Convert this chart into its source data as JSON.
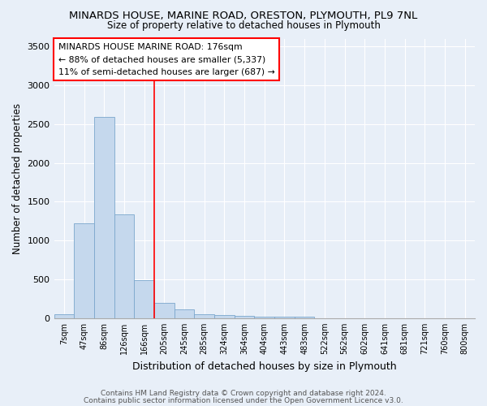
{
  "title": "MINARDS HOUSE, MARINE ROAD, ORESTON, PLYMOUTH, PL9 7NL",
  "subtitle": "Size of property relative to detached houses in Plymouth",
  "xlabel": "Distribution of detached houses by size in Plymouth",
  "ylabel": "Number of detached properties",
  "categories": [
    "7sqm",
    "47sqm",
    "86sqm",
    "126sqm",
    "166sqm",
    "205sqm",
    "245sqm",
    "285sqm",
    "324sqm",
    "364sqm",
    "404sqm",
    "443sqm",
    "483sqm",
    "522sqm",
    "562sqm",
    "602sqm",
    "641sqm",
    "681sqm",
    "721sqm",
    "760sqm",
    "800sqm"
  ],
  "values": [
    55,
    1220,
    2590,
    1340,
    490,
    195,
    110,
    50,
    35,
    25,
    20,
    20,
    20,
    0,
    0,
    0,
    0,
    0,
    0,
    0,
    0
  ],
  "bar_color": "#c5d8ed",
  "bar_edge_color": "#7ba7cc",
  "background_color": "#e8eff8",
  "grid_color": "#ffffff",
  "property_line_color": "red",
  "property_line_index": 4,
  "annotation_text": "MINARDS HOUSE MARINE ROAD: 176sqm\n← 88% of detached houses are smaller (5,337)\n11% of semi-detached houses are larger (687) →",
  "footnote1": "Contains HM Land Registry data © Crown copyright and database right 2024.",
  "footnote2": "Contains public sector information licensed under the Open Government Licence v3.0.",
  "ylim": [
    0,
    3600
  ],
  "yticks": [
    0,
    500,
    1000,
    1500,
    2000,
    2500,
    3000,
    3500
  ]
}
